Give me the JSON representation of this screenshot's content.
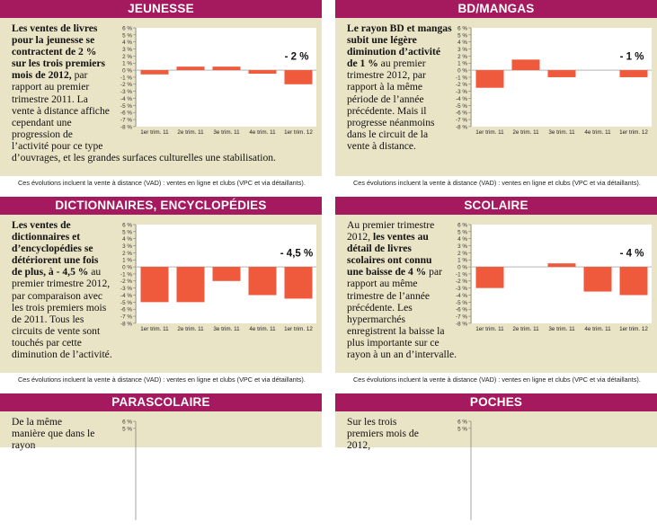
{
  "note": "Ces évolutions incluent la vente à distance (VAD) : ventes en ligne et clubs (VPC et via détaillants).",
  "colors": {
    "header": "#a5195f",
    "panel": "#eae4c6",
    "bar": "#ef5a3c"
  },
  "panels": [
    {
      "title": "JEUNESSE",
      "text_bold": "Les ventes de livres pour la jeunesse se contractent de 2 % sur les trois premiers mois de 2012,",
      "text": " par rapport au premier trimestre 2011. La vente à distance affiche cependant une progression de l’activité pour ce type d’ouvrages, et les grandes surfaces culturelles une stabilisation.",
      "chart_data": {
        "type": "bar",
        "categories": [
          "1er trim. 11",
          "2e trim. 11",
          "3e trim. 11",
          "4e trim. 11",
          "1er trim. 12"
        ],
        "values": [
          -0.6,
          0.5,
          0.5,
          -0.5,
          -2
        ],
        "label": "- 2 %",
        "ylim": [
          -8,
          6
        ],
        "yticks": [
          "6 %",
          "5 %",
          "4 %",
          "3 %",
          "2 %",
          "1 %",
          "0 %",
          "-1 %",
          "-2 %",
          "-3 %",
          "-4 %",
          "-5 %",
          "-6 %",
          "-7 %",
          "-8 %"
        ]
      }
    },
    {
      "title": "BD/MANGAS",
      "text_bold": "Le rayon BD et mangas subit une légère diminution d’activité de 1 %",
      "text": " au premier trimestre 2012, par rapport à la même période de l’année précédente. Mais il progresse néanmoins dans le circuit de la vente à distance.",
      "chart_data": {
        "type": "bar",
        "categories": [
          "1er trim. 11",
          "2e trim. 11",
          "3e trim. 11",
          "4e trim. 11",
          "1er trim. 12"
        ],
        "values": [
          -2.5,
          1.5,
          -1,
          0,
          -1
        ],
        "label": "- 1 %",
        "ylim": [
          -8,
          6
        ],
        "yticks": [
          "6 %",
          "5 %",
          "4 %",
          "3 %",
          "2 %",
          "1 %",
          "0 %",
          "-1 %",
          "-2 %",
          "-3 %",
          "-4 %",
          "-5 %",
          "-6 %",
          "-7 %",
          "-8 %"
        ]
      }
    },
    {
      "title": "DICTIONNAIRES, ENCYCLOPÉDIES",
      "text_bold": "Les ventes de dictionnaires et d’encyclopédies se détériorent une fois de plus, à - 4,5 %",
      "text": " au premier trimestre 2012, par comparaison avec les trois premiers mois de 2011. Tous les circuits de vente sont touchés par cette diminution de l’activité.",
      "chart_data": {
        "type": "bar",
        "categories": [
          "1er trim. 11",
          "2e trim. 11",
          "3e trim. 11",
          "4e trim. 11",
          "1er trim. 12"
        ],
        "values": [
          -5,
          -5,
          -2,
          -4,
          -4.5
        ],
        "label": "- 4,5 %",
        "ylim": [
          -8,
          6
        ],
        "yticks": [
          "6 %",
          "5 %",
          "4 %",
          "3 %",
          "2 %",
          "1 %",
          "0 %",
          "-1 %",
          "-2 %",
          "-3 %",
          "-4 %",
          "-5 %",
          "-6 %",
          "-7 %",
          "-8 %"
        ]
      }
    },
    {
      "title": "SCOLAIRE",
      "text_pre": "Au premier trimestre 2012, ",
      "text_bold": "les ventes au détail de livres scolaires ont connu une baisse de 4 %",
      "text": " par rapport au même trimestre de l’année précédente. Les hypermarchés enregistrent la baisse la plus importante sur ce rayon à un an d’intervalle.",
      "chart_data": {
        "type": "bar",
        "categories": [
          "1er trim. 11",
          "2e trim. 11",
          "3e trim. 11",
          "4e trim. 11",
          "1er trim. 12"
        ],
        "values": [
          -3,
          0,
          0.5,
          -3.5,
          -4
        ],
        "label": "- 4 %",
        "ylim": [
          -8,
          6
        ],
        "yticks": [
          "6 %",
          "5 %",
          "4 %",
          "3 %",
          "2 %",
          "1 %",
          "0 %",
          "-1 %",
          "-2 %",
          "-3 %",
          "-4 %",
          "-5 %",
          "-6 %",
          "-7 %",
          "-8 %"
        ]
      }
    },
    {
      "title": "PARASCOLAIRE",
      "text": "De la même manière que dans le rayon",
      "chart_data": {
        "type": "bar",
        "categories": [],
        "values": [],
        "label": "",
        "ylim": [
          -8,
          6
        ],
        "yticks": [
          "6 %",
          "5 %"
        ]
      }
    },
    {
      "title": "POCHES",
      "text": "Sur les trois premiers mois de 2012,",
      "chart_data": {
        "type": "bar",
        "categories": [],
        "values": [],
        "label": "",
        "ylim": [
          -8,
          6
        ],
        "yticks": [
          "6 %",
          "5 %"
        ]
      }
    }
  ]
}
